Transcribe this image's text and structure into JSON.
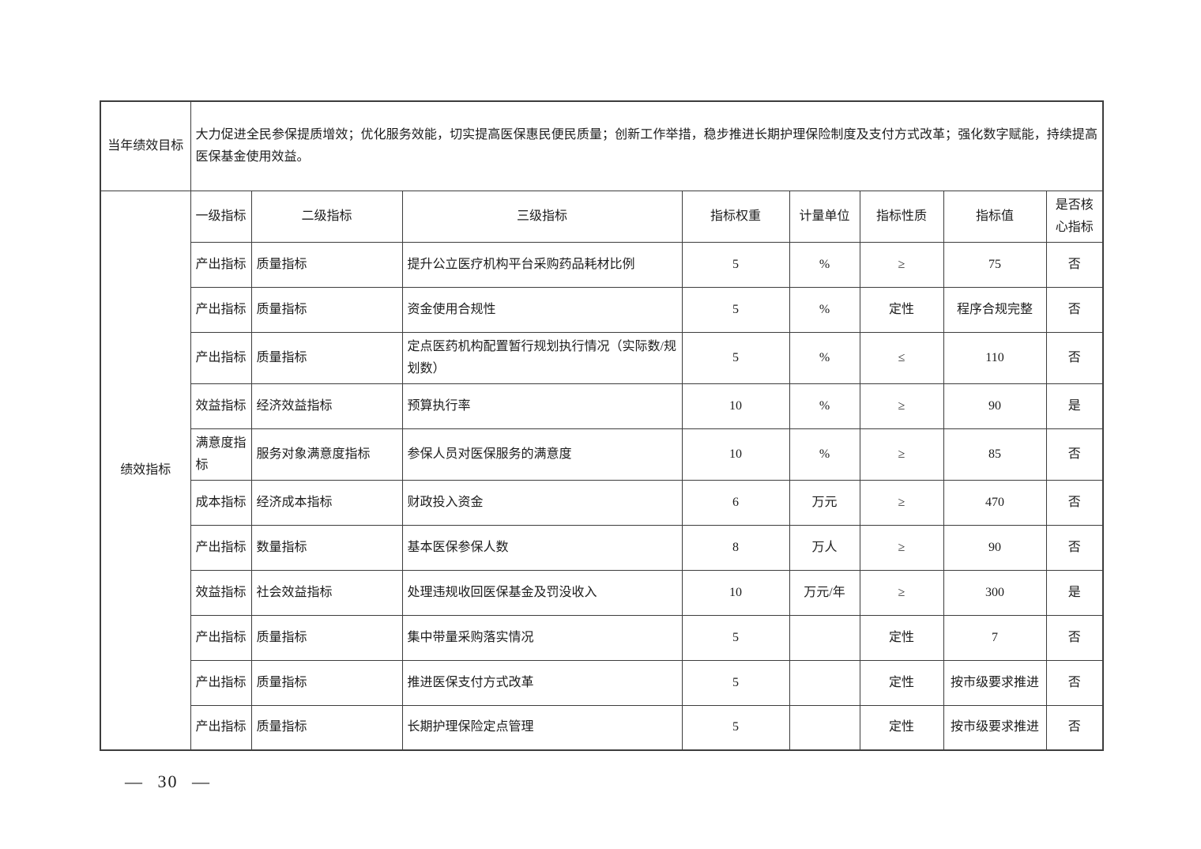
{
  "goal": {
    "label": "当年绩效目标",
    "text": "大力促进全民参保提质增效；优化服务效能，切实提高医保惠民便民质量；创新工作举措，稳步推进长期护理保险制度及支付方式改革；强化数字赋能，持续提高医保基金使用效益。"
  },
  "table": {
    "section_label": "绩效指标",
    "headers": [
      "一级指标",
      "二级指标",
      "三级指标",
      "指标权重",
      "计量单位",
      "指标性质",
      "指标值",
      "是否核心指标"
    ],
    "column_keys": [
      "level1",
      "level2",
      "level3",
      "weight",
      "unit",
      "nature",
      "value",
      "core"
    ],
    "rows": [
      [
        "产出指标",
        "质量指标",
        "提升公立医疗机构平台采购药品耗材比例",
        "5",
        "%",
        "≥",
        "75",
        "否"
      ],
      [
        "产出指标",
        "质量指标",
        "资金使用合规性",
        "5",
        "%",
        "定性",
        "程序合规完整",
        "否"
      ],
      [
        "产出指标",
        "质量指标",
        "定点医药机构配置暂行规划执行情况（实际数/规划数）",
        "5",
        "%",
        "≤",
        "110",
        "否"
      ],
      [
        "效益指标",
        "经济效益指标",
        "预算执行率",
        "10",
        "%",
        "≥",
        "90",
        "是"
      ],
      [
        "满意度指标",
        "服务对象满意度指标",
        "参保人员对医保服务的满意度",
        "10",
        "%",
        "≥",
        "85",
        "否"
      ],
      [
        "成本指标",
        "经济成本指标",
        "财政投入资金",
        "6",
        "万元",
        "≥",
        "470",
        "否"
      ],
      [
        "产出指标",
        "数量指标",
        "基本医保参保人数",
        "8",
        "万人",
        "≥",
        "90",
        "否"
      ],
      [
        "效益指标",
        "社会效益指标",
        "处理违规收回医保基金及罚没收入",
        "10",
        "万元/年",
        "≥",
        "300",
        "是"
      ],
      [
        "产出指标",
        "质量指标",
        "集中带量采购落实情况",
        "5",
        "",
        "定性",
        "7",
        "否"
      ],
      [
        "产出指标",
        "质量指标",
        "推进医保支付方式改革",
        "5",
        "",
        "定性",
        "按市级要求推进",
        "否"
      ],
      [
        "产出指标",
        "质量指标",
        "长期护理保险定点管理",
        "5",
        "",
        "定性",
        "按市级要求推进",
        "否"
      ]
    ]
  },
  "footer": {
    "page": "— 30 —"
  }
}
